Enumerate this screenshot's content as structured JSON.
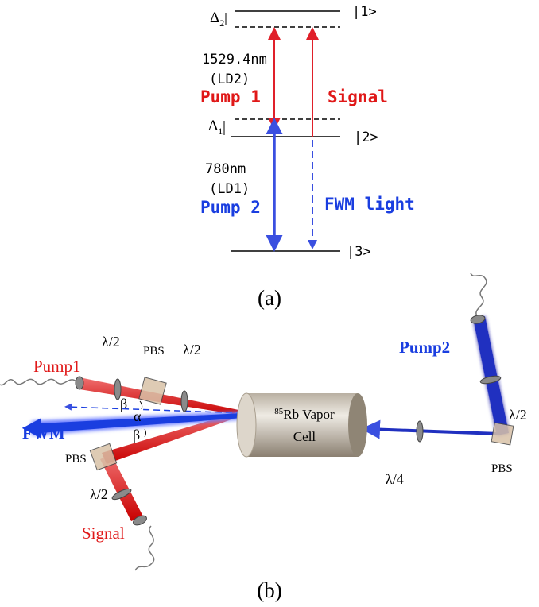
{
  "part_a": {
    "level_1": "|1>",
    "level_2": "|2>",
    "level_3": "|3>",
    "delta_2": {
      "symbol": "Δ",
      "subscript": "2"
    },
    "delta_1": {
      "symbol": "Δ",
      "subscript": "1"
    },
    "pump_1_wavelength": "1529.4nm",
    "pump_1_source": "(LD2)",
    "pump_1": "Pump 1",
    "signal": "Signal",
    "pump_2_wavelength": "780nm",
    "pump_2_source": "(LD1)",
    "pump_2": "Pump 2",
    "fwm": "FWM light",
    "caption": "(a)"
  },
  "part_b": {
    "pump_1": "Pump1",
    "pump_1_half_wave": "λ/2",
    "pump_1_pbs": "PBS",
    "pump_1_half_wave_2": "λ/2",
    "angle_beta_top": "β",
    "angle_alpha": "α",
    "angle_beta_bottom": "β",
    "fwm": "FWM",
    "signal_pbs": "PBS",
    "signal_half_wave": "λ/2",
    "signal": "Signal",
    "cell": {
      "isotope": "85",
      "line_1": "Rb Vapor",
      "line_2": "Cell"
    },
    "pump_2": "Pump2",
    "pump_2_half_wave": "λ/2",
    "pump_2_pbs": "PBS",
    "quarter_wave": "λ/4",
    "caption": "(b)"
  }
}
